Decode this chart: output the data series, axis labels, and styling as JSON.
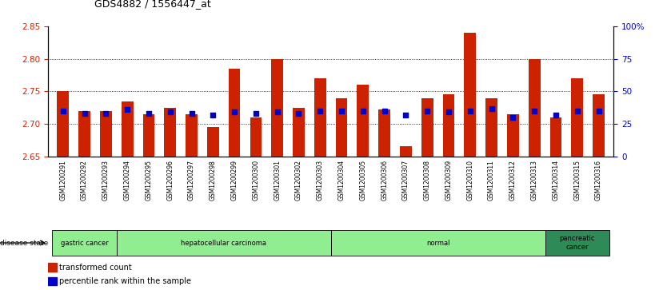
{
  "title": "GDS4882 / 1556447_at",
  "samples": [
    "GSM1200291",
    "GSM1200292",
    "GSM1200293",
    "GSM1200294",
    "GSM1200295",
    "GSM1200296",
    "GSM1200297",
    "GSM1200298",
    "GSM1200299",
    "GSM1200300",
    "GSM1200301",
    "GSM1200302",
    "GSM1200303",
    "GSM1200304",
    "GSM1200305",
    "GSM1200306",
    "GSM1200307",
    "GSM1200308",
    "GSM1200309",
    "GSM1200310",
    "GSM1200311",
    "GSM1200312",
    "GSM1200313",
    "GSM1200314",
    "GSM1200315",
    "GSM1200316"
  ],
  "transformed_count": [
    2.75,
    2.72,
    2.72,
    2.735,
    2.715,
    2.725,
    2.715,
    2.695,
    2.785,
    2.71,
    2.8,
    2.725,
    2.77,
    2.74,
    2.76,
    2.722,
    2.666,
    2.74,
    2.745,
    2.84,
    2.74,
    2.715,
    2.8,
    2.71,
    2.77,
    2.745
  ],
  "percentile_rank": [
    35,
    33,
    33,
    36,
    33,
    34,
    33,
    32,
    34,
    33,
    34,
    33,
    35,
    35,
    35,
    35,
    32,
    35,
    34,
    35,
    37,
    30,
    35,
    32,
    35,
    35
  ],
  "groups": [
    {
      "label": "gastric cancer",
      "start": 0,
      "end": 3,
      "color": "#90EE90"
    },
    {
      "label": "hepatocellular carcinoma",
      "start": 3,
      "end": 13,
      "color": "#90EE90"
    },
    {
      "label": "normal",
      "start": 13,
      "end": 23,
      "color": "#90EE90"
    },
    {
      "label": "pancreatic\ncancer",
      "start": 23,
      "end": 26,
      "color": "#2E8B57"
    }
  ],
  "ylim_left": [
    2.65,
    2.85
  ],
  "ylim_right": [
    0,
    100
  ],
  "yticks_left": [
    2.65,
    2.7,
    2.75,
    2.8,
    2.85
  ],
  "yticks_right": [
    0,
    25,
    50,
    75,
    100
  ],
  "ytick_labels_right": [
    "0",
    "25",
    "50",
    "75",
    "100%"
  ],
  "bar_color": "#CC2200",
  "dot_color": "#0000CC",
  "label_color_left": "#CC2200",
  "label_color_right": "#0000CC",
  "grid_color": "#000000",
  "xlabel_bg": "#C8C8C8"
}
